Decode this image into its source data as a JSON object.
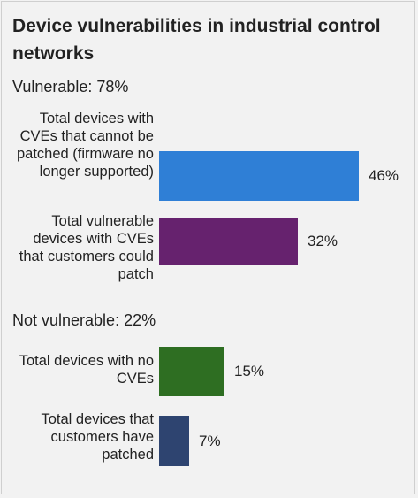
{
  "chart_data": {
    "type": "bar",
    "orientation": "horizontal",
    "title": "Device vulnerabilities in industrial control networks",
    "groups": [
      {
        "label": "Vulnerable: 78%",
        "bars": [
          {
            "label": "Total devices with CVEs that cannot be patched (firmware no longer supported)",
            "value": 46,
            "value_label": "46%",
            "color": "#2f7fd6"
          },
          {
            "label": "Total vulnerable devices with CVEs that customers could patch",
            "value": 32,
            "value_label": "32%",
            "color": "#66226e"
          }
        ]
      },
      {
        "label": "Not vulnerable: 22%",
        "bars": [
          {
            "label": "Total devices with no CVEs",
            "value": 15,
            "value_label": "15%",
            "color": "#2e6e22"
          },
          {
            "label": "Total devices that customers have patched",
            "value": 7,
            "value_label": "7%",
            "color": "#2e4470"
          }
        ]
      }
    ],
    "xlim": [
      0,
      46
    ]
  }
}
